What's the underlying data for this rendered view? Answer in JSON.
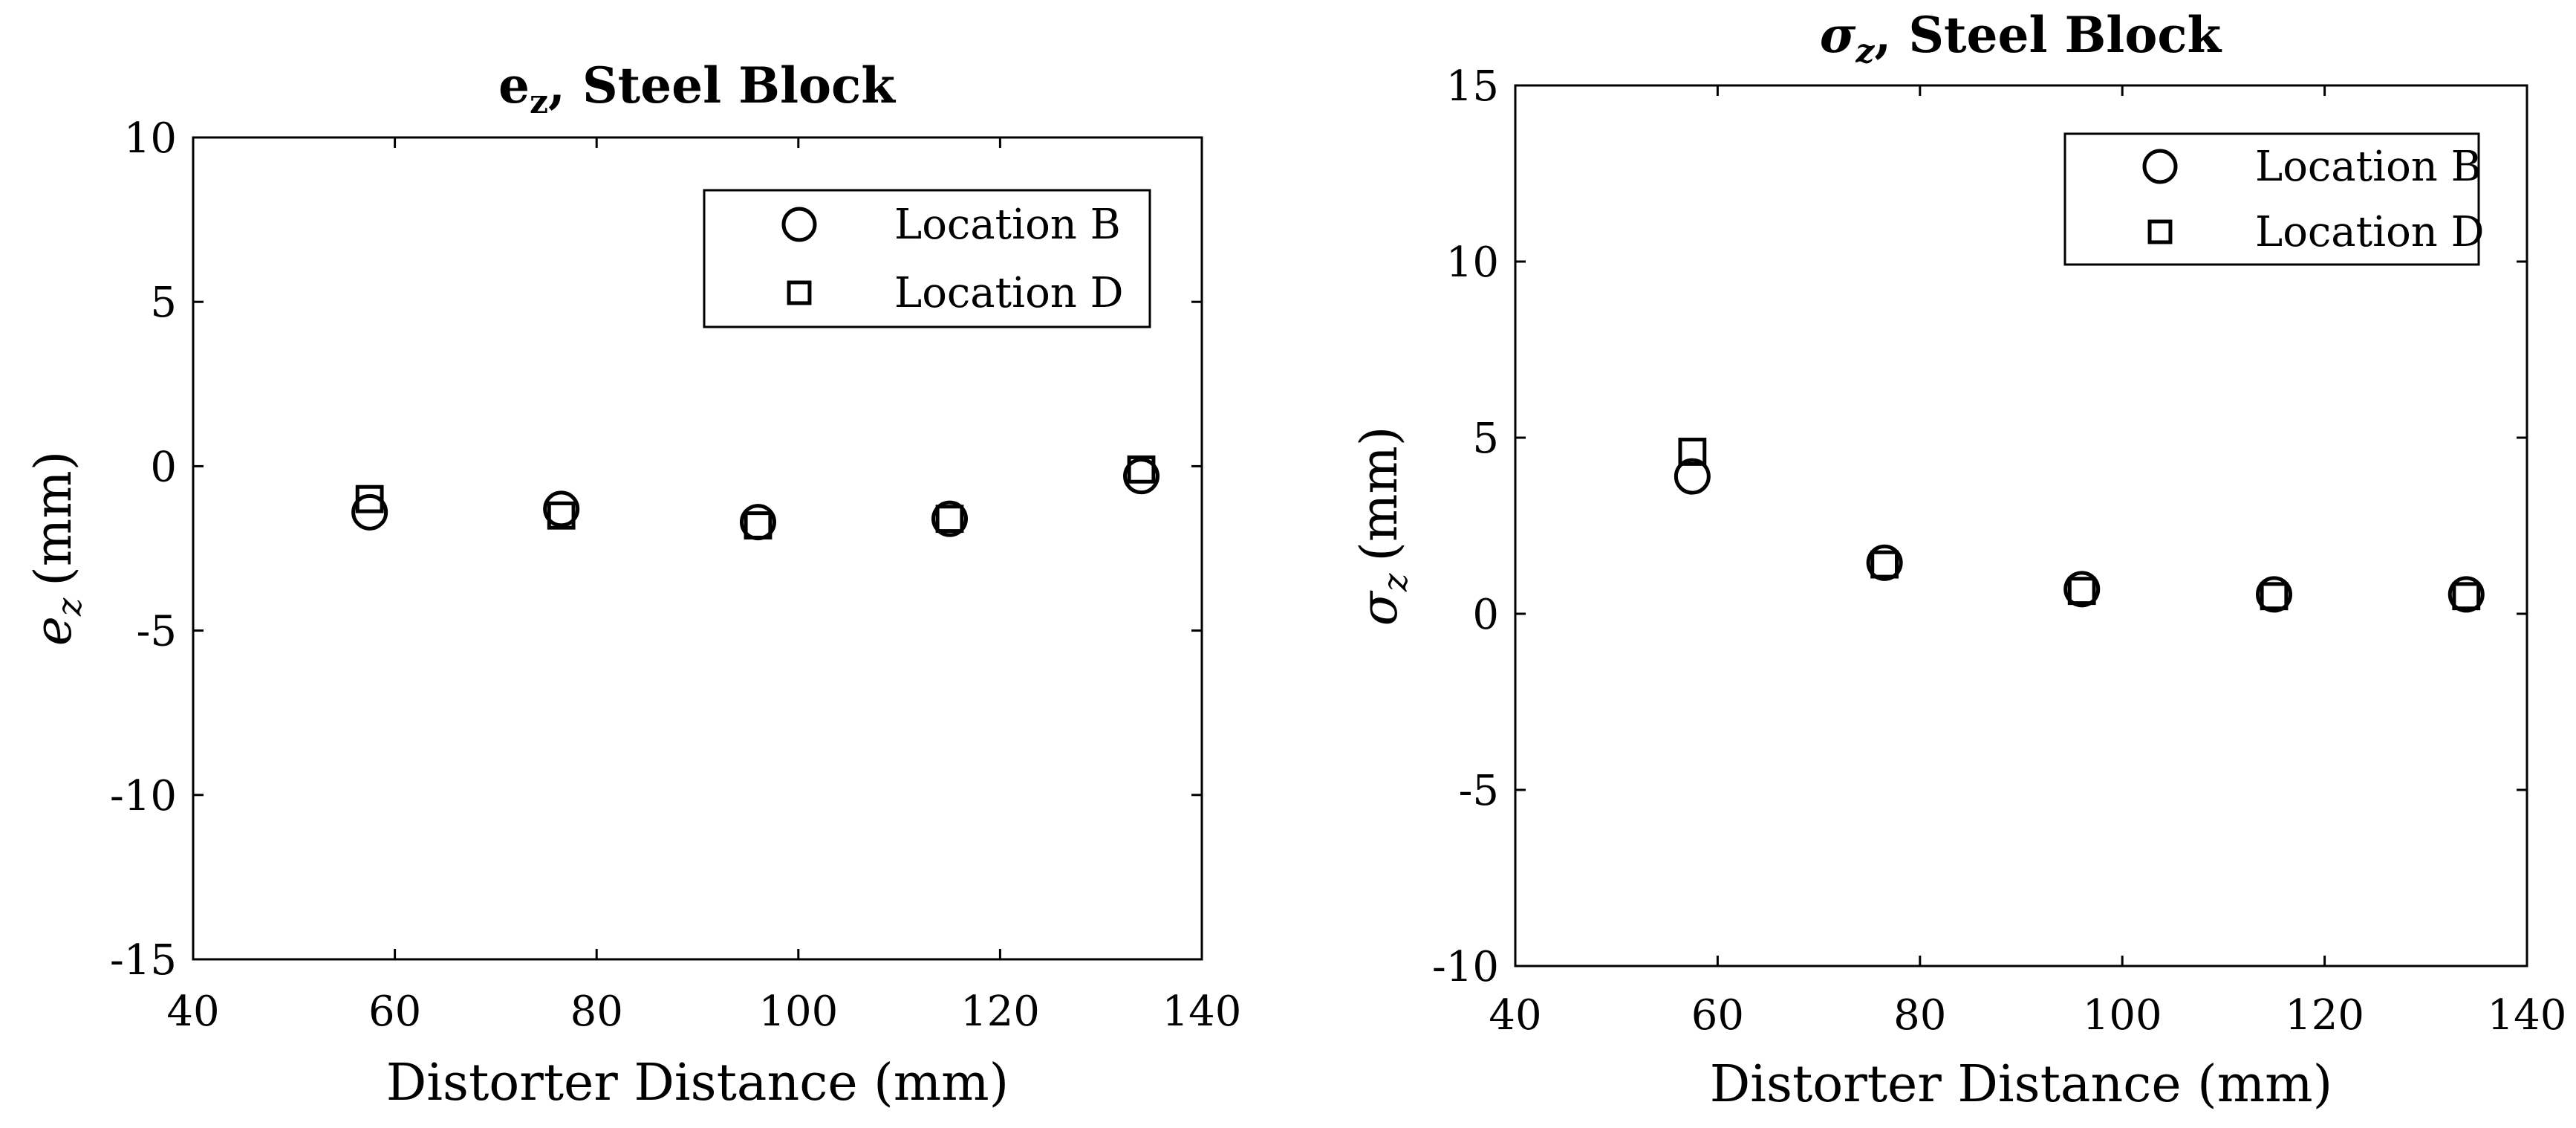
{
  "chart_data": [
    {
      "id": "ez",
      "type": "scatter",
      "title_main": "e",
      "title_sub": "z",
      "title_rest": ", Steel Block",
      "xlabel": "Distorter Distance (mm)",
      "ylabel_symbol": "e",
      "ylabel_sub": "z",
      "ylabel_unit": "(mm)",
      "xlim": [
        40,
        140
      ],
      "ylim": [
        -15,
        10
      ],
      "xticks": [
        40,
        60,
        80,
        100,
        120,
        140
      ],
      "yticks": [
        -15,
        -10,
        -5,
        0,
        5,
        10
      ],
      "grid": false,
      "legend_position": "top-right",
      "series": [
        {
          "name": "Location B",
          "marker": "circle",
          "x": [
            57.5,
            76.5,
            96,
            115,
            134
          ],
          "y": [
            -1.4,
            -1.3,
            -1.7,
            -1.6,
            -0.3
          ]
        },
        {
          "name": "Location D",
          "marker": "square",
          "x": [
            57.5,
            76.5,
            96,
            115,
            134
          ],
          "y": [
            -1.0,
            -1.5,
            -1.8,
            -1.6,
            -0.1
          ]
        }
      ]
    },
    {
      "id": "sz",
      "type": "scatter",
      "title_main": "σ",
      "title_sub": "z",
      "title_rest": ", Steel Block",
      "xlabel": "Distorter Distance (mm)",
      "ylabel_symbol": "σ",
      "ylabel_sub": "z",
      "ylabel_unit": "(mm)",
      "xlim": [
        40,
        140
      ],
      "ylim": [
        -10,
        15
      ],
      "xticks": [
        40,
        60,
        80,
        100,
        120,
        140
      ],
      "yticks": [
        -10,
        -5,
        0,
        5,
        10,
        15
      ],
      "grid": false,
      "legend_position": "top-right",
      "series": [
        {
          "name": "Location B",
          "marker": "circle",
          "x": [
            57.5,
            76.5,
            96,
            115,
            134
          ],
          "y": [
            3.9,
            1.45,
            0.7,
            0.55,
            0.55
          ]
        },
        {
          "name": "Location D",
          "marker": "square",
          "x": [
            57.5,
            76.5,
            96,
            115,
            134
          ],
          "y": [
            4.6,
            1.4,
            0.65,
            0.5,
            0.5
          ]
        }
      ]
    }
  ]
}
